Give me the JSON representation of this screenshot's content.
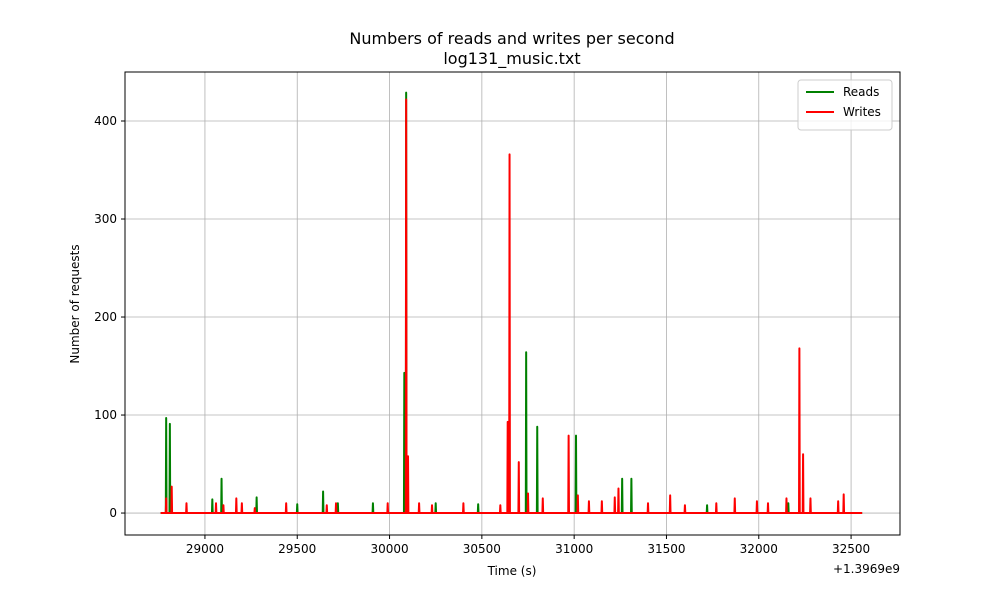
{
  "chart_data": {
    "type": "line",
    "title": "Numbers of reads and writes per second",
    "subtitle": "log131_music.txt",
    "x_label": "Time (s)",
    "y_label": "Number of requests",
    "x_offset_text": "+1.3969e9",
    "xlim": [
      28567,
      32765
    ],
    "ylim": [
      -22.4,
      450
    ],
    "xticks": [
      29000,
      29500,
      30000,
      30500,
      31000,
      31500,
      32000,
      32500
    ],
    "yticks": [
      0,
      100,
      200,
      300,
      400
    ],
    "grid": true,
    "legend": "upper right",
    "series": [
      {
        "name": "Reads",
        "color": "#008000",
        "x": [
          28760,
          28788,
          28790,
          28792,
          28808,
          28810,
          28812,
          29038,
          29040,
          29042,
          29088,
          29090,
          29092,
          29278,
          29280,
          29282,
          29498,
          29500,
          29502,
          29638,
          29640,
          29642,
          29718,
          29720,
          29722,
          29908,
          29910,
          29912,
          30078,
          30080,
          30082,
          30088,
          30090,
          30092,
          30248,
          30250,
          30252,
          30478,
          30480,
          30482,
          30738,
          30740,
          30742,
          30798,
          30800,
          30802,
          31008,
          31010,
          31012,
          31258,
          31260,
          31262,
          31308,
          31310,
          31312,
          31718,
          31720,
          31722,
          32158,
          32160,
          32162,
          32560
        ],
        "values": [
          0,
          0,
          97,
          0,
          0,
          91,
          0,
          0,
          14,
          0,
          0,
          35,
          0,
          0,
          16,
          0,
          0,
          9,
          0,
          0,
          22,
          0,
          0,
          10,
          0,
          0,
          10,
          0,
          0,
          143,
          0,
          0,
          429,
          0,
          0,
          10,
          0,
          0,
          9,
          0,
          0,
          164,
          0,
          0,
          88,
          0,
          0,
          79,
          0,
          0,
          35,
          0,
          0,
          35,
          0,
          0,
          8,
          0,
          0,
          10,
          0,
          0
        ]
      },
      {
        "name": "Writes",
        "color": "#ff0000",
        "x": [
          28760,
          28788,
          28790,
          28792,
          28818,
          28820,
          28822,
          28898,
          28900,
          28902,
          29058,
          29060,
          29062,
          29098,
          29100,
          29102,
          29168,
          29170,
          29172,
          29198,
          29200,
          29202,
          29268,
          29270,
          29272,
          29438,
          29440,
          29442,
          29658,
          29660,
          29662,
          29708,
          29710,
          29712,
          29988,
          29990,
          29992,
          30088,
          30090,
          30092,
          30098,
          30100,
          30102,
          30158,
          30160,
          30162,
          30228,
          30230,
          30232,
          30398,
          30400,
          30402,
          30598,
          30600,
          30602,
          30638,
          30640,
          30642,
          30648,
          30650,
          30652,
          30698,
          30700,
          30702,
          30748,
          30750,
          30752,
          30828,
          30830,
          30832,
          30968,
          30970,
          30972,
          31018,
          31020,
          31022,
          31078,
          31080,
          31082,
          31148,
          31150,
          31152,
          31218,
          31220,
          31222,
          31238,
          31240,
          31242,
          31398,
          31400,
          31402,
          31518,
          31520,
          31522,
          31598,
          31600,
          31602,
          31768,
          31770,
          31772,
          31868,
          31870,
          31872,
          31988,
          31990,
          31992,
          32048,
          32050,
          32052,
          32148,
          32150,
          32152,
          32218,
          32220,
          32222,
          32238,
          32240,
          32242,
          32278,
          32280,
          32282,
          32428,
          32430,
          32432,
          32458,
          32460,
          32462,
          32560
        ],
        "values": [
          0,
          0,
          15,
          0,
          0,
          27,
          0,
          0,
          10,
          0,
          0,
          10,
          0,
          0,
          8,
          0,
          0,
          15,
          0,
          0,
          10,
          0,
          0,
          5,
          0,
          0,
          10,
          0,
          0,
          8,
          0,
          0,
          10,
          0,
          0,
          10,
          0,
          0,
          422,
          0,
          0,
          58,
          0,
          0,
          10,
          0,
          0,
          8,
          0,
          0,
          10,
          0,
          0,
          8,
          0,
          0,
          93,
          0,
          0,
          366,
          0,
          0,
          52,
          0,
          0,
          20,
          0,
          0,
          15,
          0,
          0,
          79,
          0,
          0,
          18,
          0,
          0,
          12,
          0,
          0,
          12,
          0,
          0,
          16,
          0,
          0,
          25,
          0,
          0,
          10,
          0,
          0,
          18,
          0,
          0,
          8,
          0,
          0,
          10,
          0,
          0,
          15,
          0,
          0,
          12,
          0,
          0,
          10,
          0,
          0,
          15,
          0,
          0,
          168,
          0,
          0,
          60,
          0,
          0,
          15,
          0,
          0,
          12,
          0,
          0,
          19,
          0,
          0
        ]
      }
    ]
  }
}
